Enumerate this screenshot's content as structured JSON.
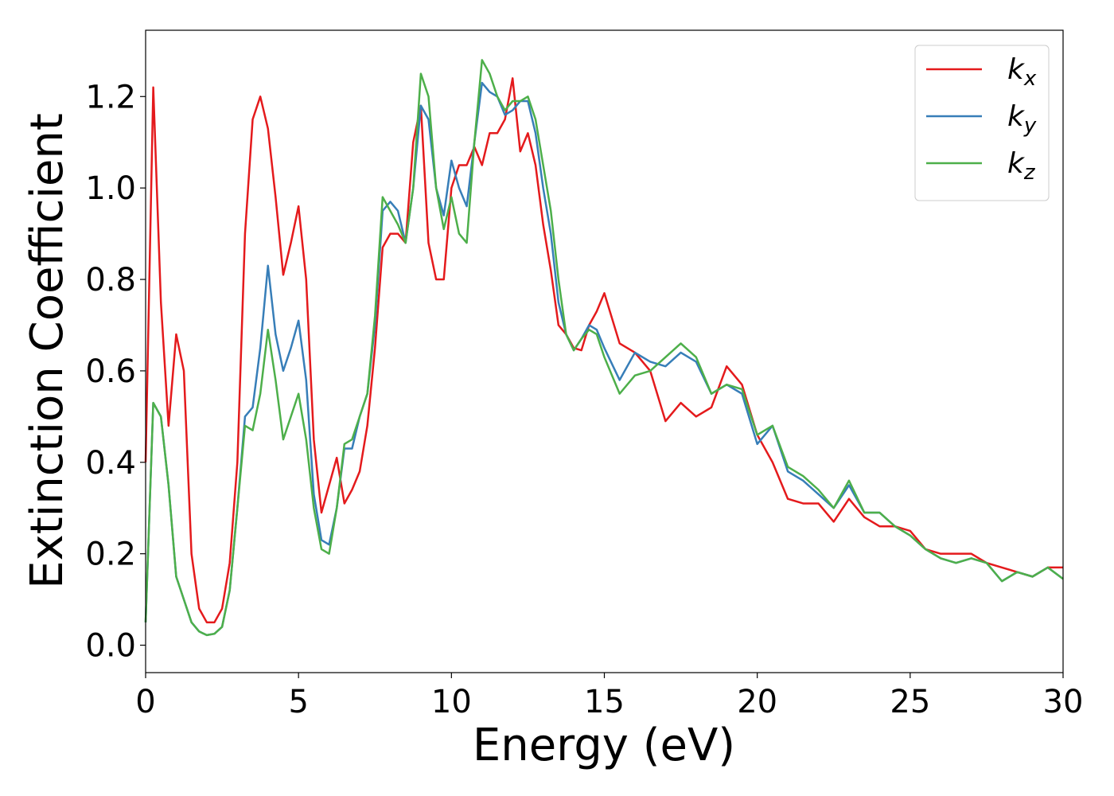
{
  "chart_data": {
    "type": "line",
    "xlabel": "Energy (eV)",
    "ylabel": "Extinction Coefficient",
    "x": [
      0,
      0.25,
      0.5,
      0.75,
      1,
      1.25,
      1.5,
      1.75,
      2,
      2.25,
      2.5,
      2.75,
      3,
      3.25,
      3.5,
      3.75,
      4,
      4.25,
      4.5,
      4.75,
      5,
      5.25,
      5.5,
      5.75,
      6,
      6.25,
      6.5,
      6.75,
      7,
      7.25,
      7.5,
      7.75,
      8,
      8.25,
      8.5,
      8.75,
      9,
      9.25,
      9.5,
      9.75,
      10,
      10.25,
      10.5,
      10.75,
      11,
      11.25,
      11.5,
      11.75,
      12,
      12.25,
      12.5,
      12.75,
      13,
      13.25,
      13.5,
      13.75,
      14,
      14.25,
      14.5,
      14.75,
      15,
      15.5,
      16,
      16.5,
      17,
      17.5,
      18,
      18.5,
      19,
      19.5,
      20,
      20.5,
      21,
      21.5,
      22,
      22.5,
      23,
      23.5,
      24,
      24.5,
      25,
      25.5,
      26,
      26.5,
      27,
      27.5,
      28,
      28.5,
      29,
      29.5,
      30
    ],
    "series": [
      {
        "name": "kx",
        "color": "#e41a1c",
        "values": [
          0.4,
          1.22,
          0.75,
          0.48,
          0.68,
          0.6,
          0.2,
          0.08,
          0.05,
          0.05,
          0.08,
          0.18,
          0.4,
          0.9,
          1.15,
          1.2,
          1.13,
          0.98,
          0.81,
          0.88,
          0.96,
          0.8,
          0.45,
          0.29,
          0.35,
          0.41,
          0.31,
          0.34,
          0.38,
          0.48,
          0.65,
          0.87,
          0.9,
          0.9,
          0.88,
          1.1,
          1.18,
          0.88,
          0.8,
          0.8,
          1.0,
          1.05,
          1.05,
          1.09,
          1.05,
          1.12,
          1.12,
          1.15,
          1.24,
          1.08,
          1.12,
          1.05,
          0.92,
          0.82,
          0.7,
          0.68,
          0.65,
          0.645,
          0.7,
          0.73,
          0.77,
          0.66,
          0.64,
          0.6,
          0.49,
          0.53,
          0.5,
          0.52,
          0.61,
          0.57,
          0.46,
          0.4,
          0.32,
          0.31,
          0.31,
          0.27,
          0.32,
          0.28,
          0.26,
          0.26,
          0.25,
          0.21,
          0.2,
          0.2,
          0.2,
          0.18,
          0.17,
          0.16,
          0.15,
          0.17,
          0.17
        ]
      },
      {
        "name": "ky",
        "color": "#377eb8",
        "values": [
          0.05,
          0.53,
          0.5,
          0.35,
          0.15,
          0.1,
          0.05,
          0.03,
          0.022,
          0.025,
          0.04,
          0.12,
          0.3,
          0.5,
          0.52,
          0.65,
          0.83,
          0.68,
          0.6,
          0.65,
          0.71,
          0.58,
          0.33,
          0.23,
          0.22,
          0.3,
          0.43,
          0.43,
          0.5,
          0.55,
          0.7,
          0.95,
          0.97,
          0.95,
          0.88,
          1.0,
          1.18,
          1.15,
          1.0,
          0.94,
          1.06,
          1.0,
          0.96,
          1.1,
          1.23,
          1.21,
          1.2,
          1.16,
          1.17,
          1.19,
          1.19,
          1.12,
          1.0,
          0.9,
          0.75,
          0.68,
          0.645,
          0.67,
          0.7,
          0.69,
          0.65,
          0.58,
          0.64,
          0.62,
          0.61,
          0.64,
          0.62,
          0.55,
          0.57,
          0.55,
          0.44,
          0.48,
          0.38,
          0.36,
          0.33,
          0.3,
          0.35,
          0.29,
          0.29,
          0.26,
          0.24,
          0.21,
          0.19,
          0.18,
          0.19,
          0.18,
          0.14,
          0.16,
          0.15,
          0.17,
          0.145
        ]
      },
      {
        "name": "kz",
        "color": "#4daf4a",
        "values": [
          0.05,
          0.53,
          0.5,
          0.35,
          0.15,
          0.1,
          0.05,
          0.03,
          0.022,
          0.025,
          0.04,
          0.12,
          0.3,
          0.48,
          0.47,
          0.55,
          0.69,
          0.58,
          0.45,
          0.5,
          0.55,
          0.45,
          0.3,
          0.21,
          0.2,
          0.3,
          0.44,
          0.45,
          0.5,
          0.55,
          0.72,
          0.98,
          0.95,
          0.92,
          0.88,
          1.0,
          1.25,
          1.2,
          1.0,
          0.91,
          0.98,
          0.9,
          0.88,
          1.1,
          1.28,
          1.25,
          1.2,
          1.17,
          1.19,
          1.19,
          1.2,
          1.15,
          1.05,
          0.95,
          0.8,
          0.68,
          0.645,
          0.67,
          0.69,
          0.68,
          0.63,
          0.55,
          0.59,
          0.6,
          0.63,
          0.66,
          0.63,
          0.55,
          0.57,
          0.56,
          0.46,
          0.48,
          0.39,
          0.37,
          0.34,
          0.3,
          0.36,
          0.29,
          0.29,
          0.26,
          0.24,
          0.21,
          0.19,
          0.18,
          0.19,
          0.18,
          0.14,
          0.16,
          0.15,
          0.17,
          0.145
        ]
      }
    ],
    "xlim": [
      0,
      30
    ],
    "xticks": [
      0,
      5,
      10,
      15,
      20,
      25,
      30
    ],
    "ylim": [
      -0.06,
      1.345
    ],
    "yticks": [
      {
        "value": 0,
        "label": "0.0"
      },
      0.2,
      0.4,
      0.6,
      0.8,
      {
        "value": 1,
        "label": "1.0"
      },
      1.2
    ],
    "legend": "upper right",
    "grid": false
  }
}
